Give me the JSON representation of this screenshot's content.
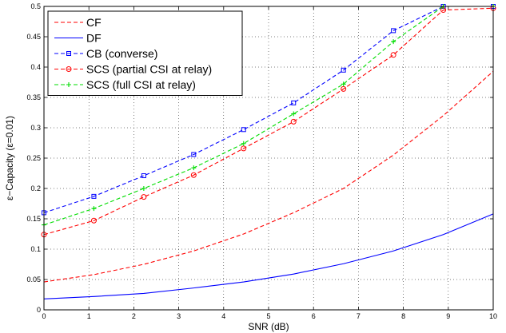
{
  "chart_data": {
    "type": "line",
    "xlabel": "SNR (dB)",
    "ylabel": "ε−Capacity (ε=0.01)",
    "xlim": [
      0,
      10
    ],
    "ylim": [
      0,
      0.5
    ],
    "xticks": [
      0,
      1,
      2,
      3,
      4,
      5,
      6,
      7,
      8,
      9,
      10
    ],
    "xtick_labels": [
      "0",
      "1",
      "2",
      "3",
      "4",
      "5",
      "6",
      "7",
      "8",
      "9",
      "10"
    ],
    "yticks": [
      0,
      0.05,
      0.1,
      0.15,
      0.2,
      0.25,
      0.3,
      0.35,
      0.4,
      0.45,
      0.5
    ],
    "ytick_labels": [
      "0",
      "0.05",
      "0.1",
      "0.15",
      "0.2",
      "0.25",
      "0.3",
      "0.35",
      "0.4",
      "0.45",
      "0.5"
    ],
    "grid": "on",
    "legend_position": "top-left",
    "x": [
      0,
      1.111,
      2.222,
      3.333,
      4.444,
      5.556,
      6.667,
      7.778,
      8.889,
      10
    ],
    "series": [
      {
        "name": "CF",
        "color": "#ff0000",
        "line": "dashed",
        "marker": "none",
        "values": [
          0.046,
          0.058,
          0.075,
          0.097,
          0.125,
          0.16,
          0.2,
          0.255,
          0.32,
          0.393
        ]
      },
      {
        "name": "DF",
        "color": "#0000ff",
        "line": "solid",
        "marker": "none",
        "values": [
          0.018,
          0.022,
          0.027,
          0.036,
          0.046,
          0.059,
          0.076,
          0.097,
          0.124,
          0.158
        ]
      },
      {
        "name": "CB (converse)",
        "color": "#0000ff",
        "line": "dashed",
        "marker": "square",
        "values": [
          0.16,
          0.187,
          0.221,
          0.256,
          0.297,
          0.341,
          0.395,
          0.46,
          0.5,
          0.5
        ]
      },
      {
        "name": "SCS (partial CSI at relay)",
        "color": "#ff0000",
        "line": "dashed",
        "marker": "circle",
        "values": [
          0.124,
          0.147,
          0.186,
          0.222,
          0.266,
          0.31,
          0.364,
          0.42,
          0.494,
          0.497
        ]
      },
      {
        "name": "SCS (full CSI at relay)",
        "color": "#00dd00",
        "line": "dashed",
        "marker": "plus",
        "values": [
          0.14,
          0.167,
          0.2,
          0.234,
          0.274,
          0.323,
          0.372,
          0.442,
          0.5,
          0.5
        ]
      }
    ]
  }
}
